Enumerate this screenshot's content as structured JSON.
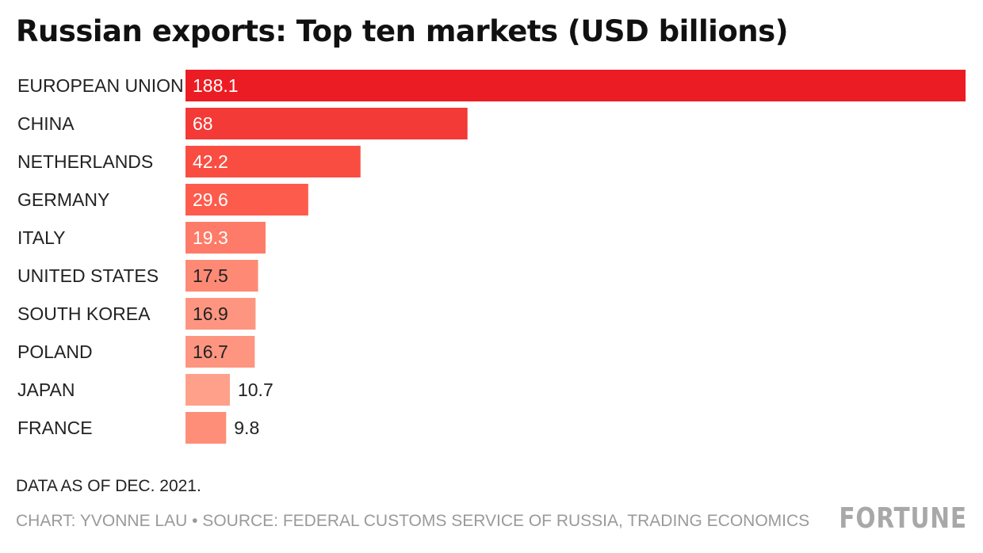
{
  "header": {
    "title": "Russian exports: Top ten markets (USD billions)"
  },
  "footer": {
    "note": "DATA AS OF DEC. 2021.",
    "credit": "CHART: YVONNE LAU • SOURCE: FEDERAL CUSTOMS SERVICE OF RUSSIA, TRADING ECONOMICS",
    "brand": "FORTUNE"
  },
  "chart_data": {
    "type": "bar",
    "orientation": "horizontal",
    "title": "Russian exports: Top ten markets (USD billions)",
    "categories": [
      "EUROPEAN UNION",
      "CHINA",
      "NETHERLANDS",
      "GERMANY",
      "ITALY",
      "UNITED STATES",
      "SOUTH KOREA",
      "POLAND",
      "JAPAN",
      "FRANCE"
    ],
    "values": [
      188.1,
      68,
      42.2,
      29.6,
      19.3,
      17.5,
      16.9,
      16.7,
      10.7,
      9.8
    ],
    "labels": [
      "188.1",
      "68",
      "42.2",
      "29.6",
      "19.3",
      "17.5",
      "16.9",
      "16.7",
      "10.7",
      "9.8"
    ],
    "bar_colors": [
      "#ec1c24",
      "#f33a36",
      "#fa4d42",
      "#fd5c4c",
      "#fd7b68",
      "#fe8a75",
      "#fe9580",
      "#fe9580",
      "#ffa08a",
      "#fe8e78"
    ],
    "label_colors": [
      "#ffffff",
      "#ffffff",
      "#ffffff",
      "#ffffff",
      "#ffffff",
      "#222222",
      "#222222",
      "#222222",
      "#222222",
      "#222222"
    ],
    "xlim": [
      0,
      188.1
    ],
    "grid": false,
    "legend": "none"
  }
}
